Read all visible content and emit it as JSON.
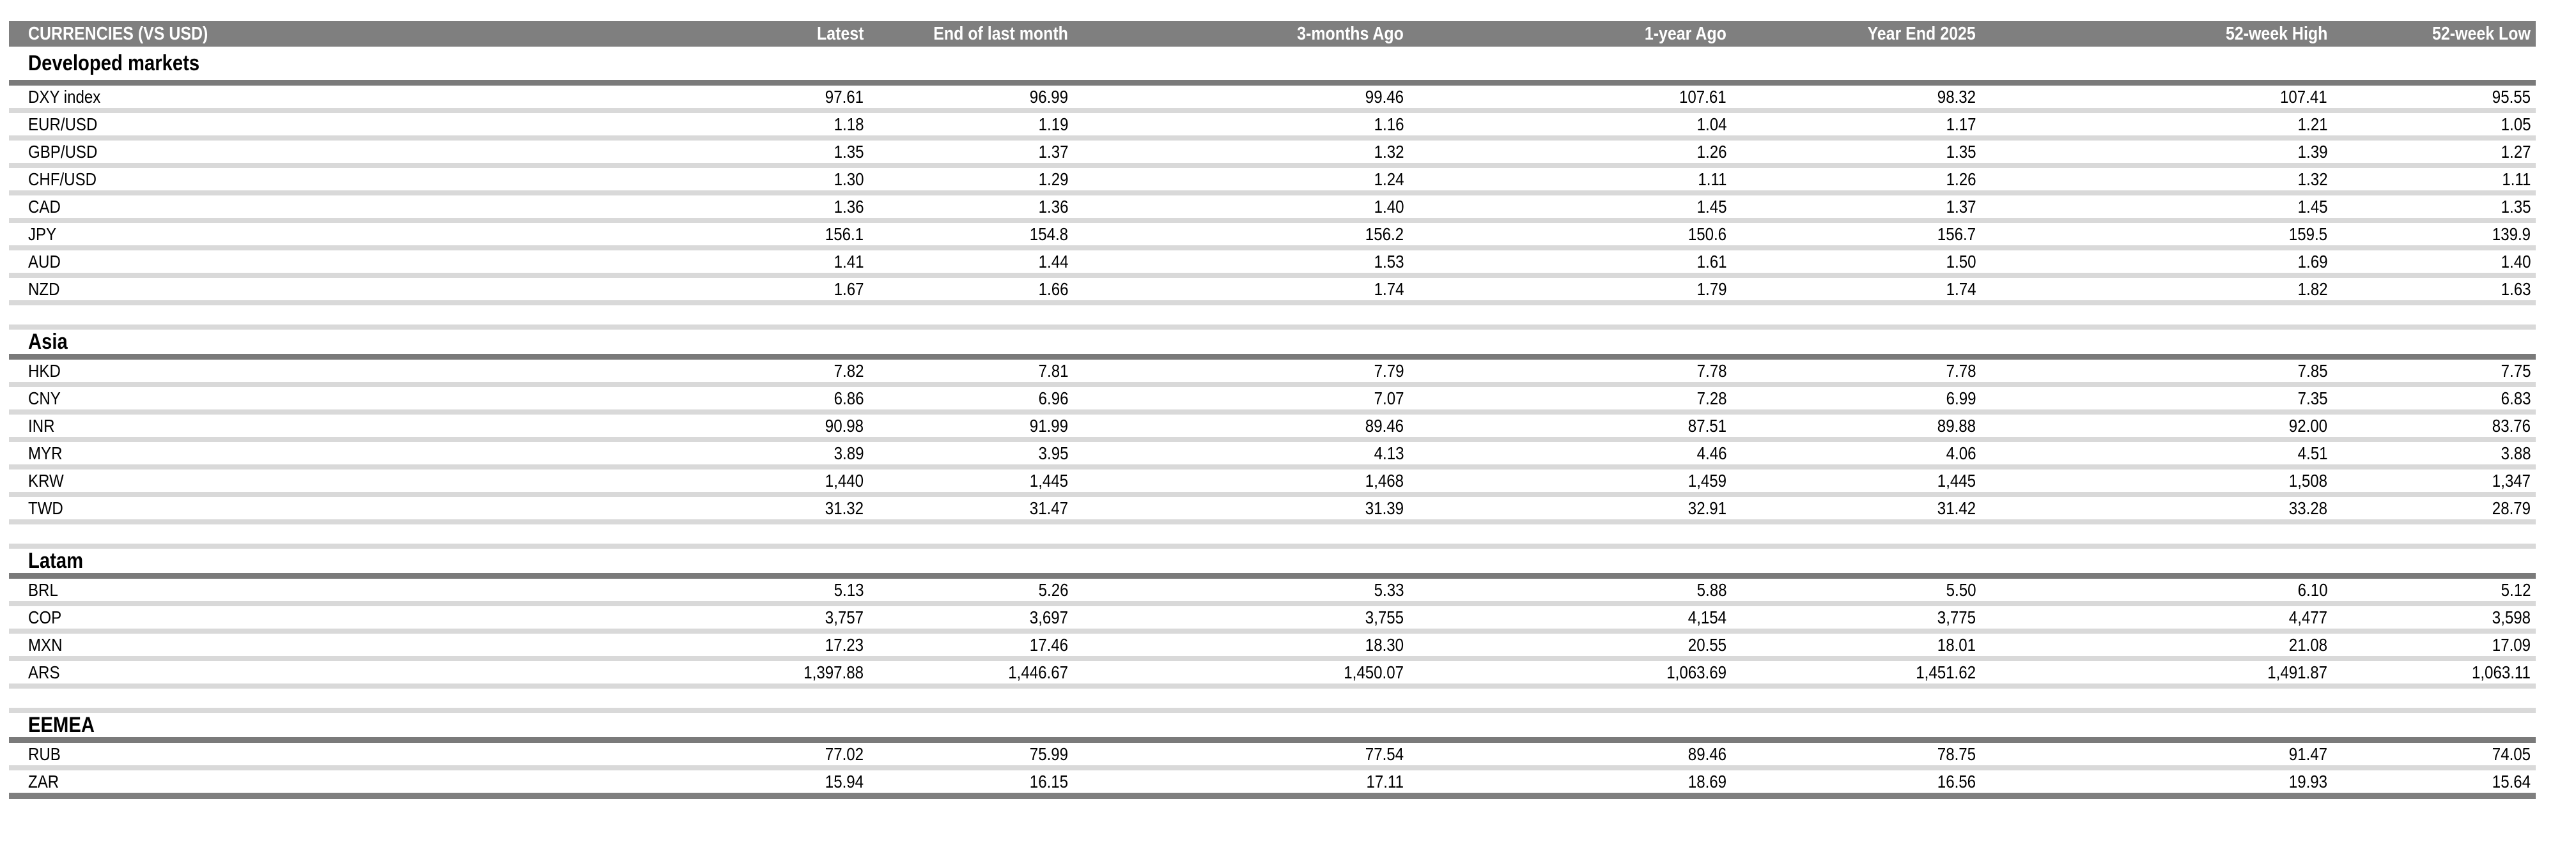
{
  "table": {
    "columns": [
      "CURRENCIES (VS USD)",
      "Latest",
      "End of last month",
      "3-months Ago",
      "1-year Ago",
      "Year End 2025",
      "52-week High",
      "52-week Low"
    ],
    "sections": [
      {
        "title": "Developed markets",
        "rows": [
          {
            "label": "DXY index",
            "values": [
              "97.61",
              "96.99",
              "99.46",
              "107.61",
              "98.32",
              "107.41",
              "95.55"
            ]
          },
          {
            "label": "EUR/USD",
            "values": [
              "1.18",
              "1.19",
              "1.16",
              "1.04",
              "1.17",
              "1.21",
              "1.05"
            ]
          },
          {
            "label": "GBP/USD",
            "values": [
              "1.35",
              "1.37",
              "1.32",
              "1.26",
              "1.35",
              "1.39",
              "1.27"
            ]
          },
          {
            "label": "CHF/USD",
            "values": [
              "1.30",
              "1.29",
              "1.24",
              "1.11",
              "1.26",
              "1.32",
              "1.11"
            ]
          },
          {
            "label": "CAD",
            "values": [
              "1.36",
              "1.36",
              "1.40",
              "1.45",
              "1.37",
              "1.45",
              "1.35"
            ]
          },
          {
            "label": "JPY",
            "values": [
              "156.1",
              "154.8",
              "156.2",
              "150.6",
              "156.7",
              "159.5",
              "139.9"
            ]
          },
          {
            "label": "AUD",
            "values": [
              "1.41",
              "1.44",
              "1.53",
              "1.61",
              "1.50",
              "1.69",
              "1.40"
            ]
          },
          {
            "label": "NZD",
            "values": [
              "1.67",
              "1.66",
              "1.74",
              "1.79",
              "1.74",
              "1.82",
              "1.63"
            ]
          }
        ]
      },
      {
        "title": "Asia",
        "rows": [
          {
            "label": "HKD",
            "values": [
              "7.82",
              "7.81",
              "7.79",
              "7.78",
              "7.78",
              "7.85",
              "7.75"
            ]
          },
          {
            "label": "CNY",
            "values": [
              "6.86",
              "6.96",
              "7.07",
              "7.28",
              "6.99",
              "7.35",
              "6.83"
            ]
          },
          {
            "label": "INR",
            "values": [
              "90.98",
              "91.99",
              "89.46",
              "87.51",
              "89.88",
              "92.00",
              "83.76"
            ]
          },
          {
            "label": "MYR",
            "values": [
              "3.89",
              "3.95",
              "4.13",
              "4.46",
              "4.06",
              "4.51",
              "3.88"
            ]
          },
          {
            "label": "KRW",
            "values": [
              "1,440",
              "1,445",
              "1,468",
              "1,459",
              "1,445",
              "1,508",
              "1,347"
            ]
          },
          {
            "label": "TWD",
            "values": [
              "31.32",
              "31.47",
              "31.39",
              "32.91",
              "31.42",
              "33.28",
              "28.79"
            ]
          }
        ]
      },
      {
        "title": "Latam",
        "rows": [
          {
            "label": "BRL",
            "values": [
              "5.13",
              "5.26",
              "5.33",
              "5.88",
              "5.50",
              "6.10",
              "5.12"
            ]
          },
          {
            "label": "COP",
            "values": [
              "3,757",
              "3,697",
              "3,755",
              "4,154",
              "3,775",
              "4,477",
              "3,598"
            ]
          },
          {
            "label": "MXN",
            "values": [
              "17.23",
              "17.46",
              "18.30",
              "20.55",
              "18.01",
              "21.08",
              "17.09"
            ]
          },
          {
            "label": "ARS",
            "values": [
              "1,397.88",
              "1,446.67",
              "1,450.07",
              "1,063.69",
              "1,451.62",
              "1,491.87",
              "1,063.11"
            ]
          }
        ]
      },
      {
        "title": "EEMEA",
        "rows": [
          {
            "label": "RUB",
            "values": [
              "77.02",
              "75.99",
              "77.54",
              "89.46",
              "78.75",
              "91.47",
              "74.05"
            ]
          },
          {
            "label": "ZAR",
            "values": [
              "15.94",
              "16.15",
              "17.11",
              "18.69",
              "16.56",
              "19.93",
              "15.64"
            ]
          }
        ]
      }
    ]
  },
  "colors": {
    "header_bg": "#7f7f7f",
    "header_text": "#ffffff",
    "section_rule": "#7a7a7a",
    "row_separator": "#d9d9d9",
    "table_bottom_rule": "#7f7f7f",
    "body_text": "#000000"
  }
}
